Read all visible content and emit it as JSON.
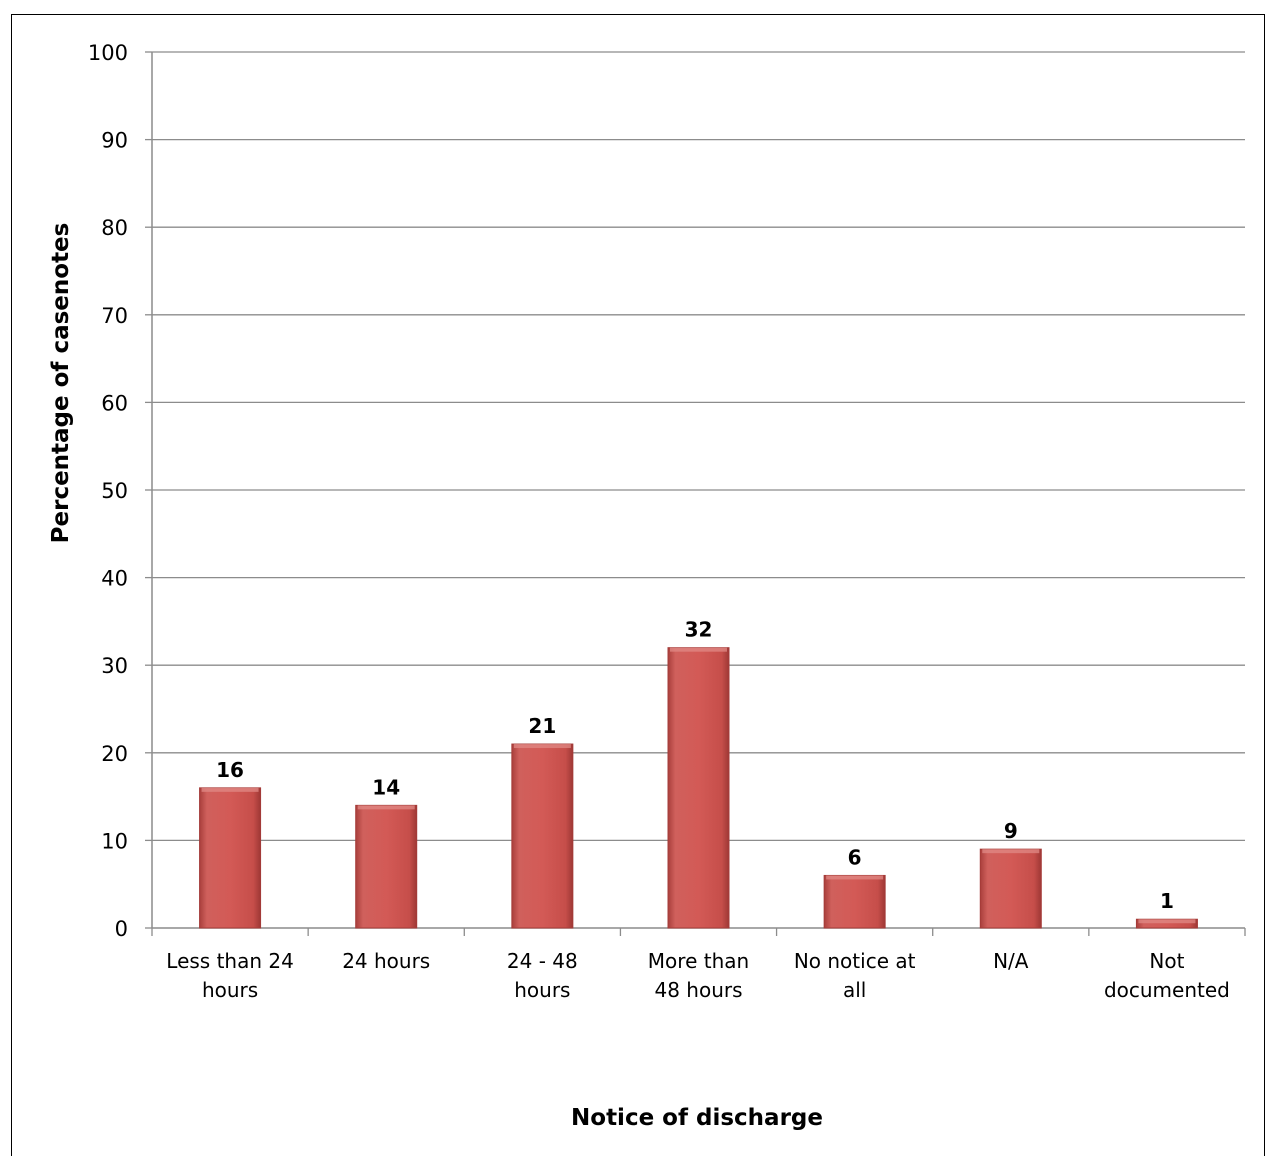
{
  "chart_data": {
    "type": "bar",
    "categories": [
      "Less than 24 hours",
      "24 hours",
      "24 - 48 hours",
      "More than 48 hours",
      "No notice at all",
      "N/A",
      "Not documented"
    ],
    "category_label_lines": [
      [
        "Less than 24",
        "hours"
      ],
      [
        "24 hours"
      ],
      [
        "24 - 48",
        "hours"
      ],
      [
        "More than",
        "48 hours"
      ],
      [
        "No notice at",
        "all"
      ],
      [
        "N/A"
      ],
      [
        "Not",
        "documented"
      ]
    ],
    "values": [
      16,
      14,
      21,
      32,
      6,
      9,
      1
    ],
    "title": "",
    "xlabel": "Notice of discharge",
    "ylabel": "Percentage of casenotes",
    "ylim": [
      0,
      100
    ],
    "yticks": [
      0,
      10,
      20,
      30,
      40,
      50,
      60,
      70,
      80,
      90,
      100
    ],
    "grid": true,
    "legend": "none",
    "data_labels": true,
    "bar_color": "#c0504d"
  }
}
